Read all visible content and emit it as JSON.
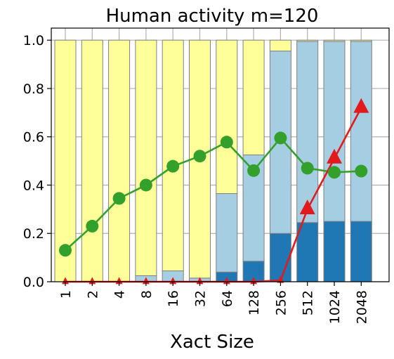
{
  "chart_data": {
    "type": "bar",
    "title": "Human activity m=120",
    "xlabel": "Xact Size",
    "ylabel": "",
    "categories": [
      "1",
      "2",
      "4",
      "8",
      "16",
      "32",
      "64",
      "128",
      "256",
      "512",
      "1024",
      "2048"
    ],
    "ylim": [
      0,
      1.05
    ],
    "yticks": [
      "0.0",
      "0.2",
      "0.4",
      "0.6",
      "0.8",
      "1.0"
    ],
    "grid": true,
    "stacked_series": [
      {
        "color": "#1f77b4",
        "values": [
          0,
          0,
          0,
          0,
          0,
          0,
          0.04,
          0.085,
          0.2,
          0.245,
          0.25,
          0.25
        ]
      },
      {
        "color": "#a6cee3",
        "values": [
          0,
          0,
          0,
          0.025,
          0.045,
          0.015,
          0.325,
          0.44,
          0.755,
          0.75,
          0.745,
          0.745
        ]
      },
      {
        "color": "#ffff99",
        "values": [
          1,
          1,
          1,
          0.975,
          0.955,
          0.985,
          0.635,
          0.475,
          0.045,
          0.005,
          0.005,
          0.005
        ]
      }
    ],
    "line_series": [
      {
        "color": "#33a02c",
        "marker": "circle",
        "values": [
          0.13,
          0.23,
          0.345,
          0.4,
          0.478,
          0.52,
          0.578,
          0.46,
          0.595,
          0.47,
          0.453,
          0.458
        ]
      },
      {
        "color": "#e31a1c",
        "marker": "triangle",
        "values": [
          0,
          0,
          0,
          0,
          0,
          0,
          0,
          0,
          0.005,
          0.3,
          0.51,
          0.72
        ]
      }
    ]
  }
}
